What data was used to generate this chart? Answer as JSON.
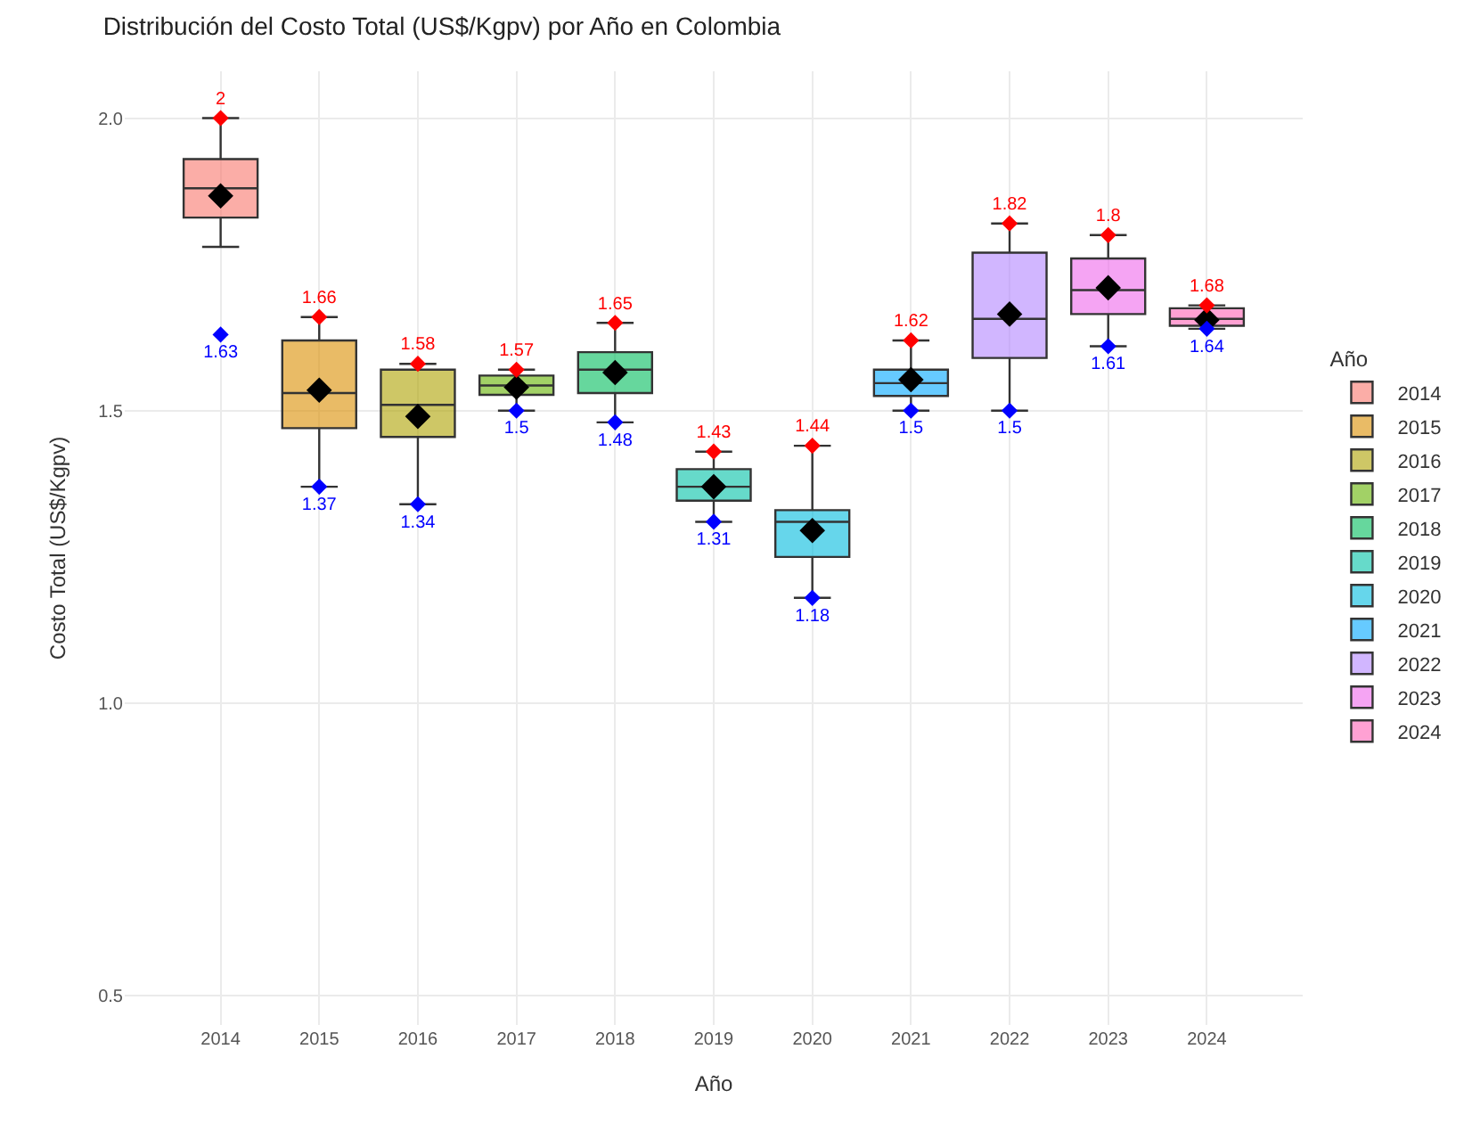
{
  "chart_data": {
    "type": "box",
    "title": "Distribución del Costo Total (US$/Kgpv) por Año en Colombia",
    "xlabel": "Año",
    "ylabel": "Costo Total (US$/Kgpv)",
    "legend_title": "Año",
    "legend": "right",
    "grid": true,
    "categories": [
      "2014",
      "2015",
      "2016",
      "2017",
      "2018",
      "2019",
      "2020",
      "2021",
      "2022",
      "2023",
      "2024"
    ],
    "series": [
      {
        "name": "2014",
        "color": "#f8766d",
        "boxes": [
          {
            "low": 1.78,
            "q1": 1.83,
            "median": 1.88,
            "q3": 1.93,
            "high": 2.0,
            "mean": 1.867
          },
          null,
          null,
          null,
          null,
          null,
          null,
          null,
          null,
          null,
          null
        ]
      },
      {
        "name": "2015",
        "color": "#db8e00",
        "boxes": [
          null,
          {
            "low": 1.37,
            "q1": 1.47,
            "median": 1.53,
            "q3": 1.62,
            "high": 1.66,
            "mean": 1.535
          },
          null,
          null,
          null,
          null,
          null,
          null,
          null,
          null,
          null
        ]
      },
      {
        "name": "2016",
        "color": "#aea200",
        "boxes": [
          null,
          null,
          {
            "low": 1.34,
            "q1": 1.455,
            "median": 1.51,
            "q3": 1.57,
            "high": 1.58,
            "mean": 1.49
          },
          null,
          null,
          null,
          null,
          null,
          null,
          null,
          null
        ]
      },
      {
        "name": "2017",
        "color": "#64b200",
        "boxes": [
          null,
          null,
          null,
          {
            "low": 1.5,
            "q1": 1.527,
            "median": 1.543,
            "q3": 1.56,
            "high": 1.57,
            "mean": 1.54
          },
          null,
          null,
          null,
          null,
          null,
          null,
          null
        ]
      },
      {
        "name": "2018",
        "color": "#00bd5c",
        "boxes": [
          null,
          null,
          null,
          null,
          {
            "low": 1.48,
            "q1": 1.53,
            "median": 1.57,
            "q3": 1.6,
            "high": 1.65,
            "mean": 1.565
          },
          null,
          null,
          null,
          null,
          null,
          null
        ]
      },
      {
        "name": "2019",
        "color": "#00c1a7",
        "boxes": [
          null,
          null,
          null,
          null,
          null,
          {
            "low": 1.31,
            "q1": 1.346,
            "median": 1.37,
            "q3": 1.4,
            "high": 1.43,
            "mean": 1.37
          },
          null,
          null,
          null,
          null,
          null
        ]
      },
      {
        "name": "2020",
        "color": "#00bade",
        "boxes": [
          null,
          null,
          null,
          null,
          null,
          null,
          {
            "low": 1.18,
            "q1": 1.25,
            "median": 1.31,
            "q3": 1.33,
            "high": 1.44,
            "mean": 1.295
          },
          null,
          null,
          null,
          null
        ]
      },
      {
        "name": "2021",
        "color": "#00a6ff",
        "boxes": [
          null,
          null,
          null,
          null,
          null,
          null,
          null,
          {
            "low": 1.5,
            "q1": 1.525,
            "median": 1.547,
            "q3": 1.57,
            "high": 1.62,
            "mean": 1.553
          },
          null,
          null,
          null
        ]
      },
      {
        "name": "2022",
        "color": "#b385ff",
        "boxes": [
          null,
          null,
          null,
          null,
          null,
          null,
          null,
          null,
          {
            "low": 1.5,
            "q1": 1.59,
            "median": 1.657,
            "q3": 1.77,
            "high": 1.82,
            "mean": 1.665
          },
          null,
          null
        ]
      },
      {
        "name": "2023",
        "color": "#ef67eb",
        "boxes": [
          null,
          null,
          null,
          null,
          null,
          null,
          null,
          null,
          null,
          {
            "low": 1.61,
            "q1": 1.665,
            "median": 1.706,
            "q3": 1.76,
            "high": 1.8,
            "mean": 1.71
          },
          null
        ]
      },
      {
        "name": "2024",
        "color": "#ff63b6",
        "boxes": [
          null,
          null,
          null,
          null,
          null,
          null,
          null,
          null,
          null,
          null,
          {
            "low": 1.64,
            "q1": 1.645,
            "median": 1.657,
            "q3": 1.675,
            "high": 1.68,
            "mean": 1.655
          }
        ]
      },
      {
        "type": "scatter",
        "color": "#ff0000",
        "marker": "diamond",
        "values": [
          2,
          1.66,
          1.58,
          1.57,
          1.65,
          1.43,
          1.44,
          1.62,
          1.82,
          1.8,
          1.68
        ]
      },
      {
        "type": "scatter",
        "color": "#0000ff",
        "marker": "diamond",
        "values": [
          1.63,
          1.37,
          1.34,
          1.5,
          1.48,
          1.31,
          1.18,
          1.5,
          1.5,
          1.61,
          1.64
        ]
      }
    ],
    "data_labels": true,
    "ylim": [
      0.45,
      2.08
    ],
    "yticks": [
      {
        "value": 0.5,
        "label": "0.5"
      },
      {
        "value": 1.0,
        "label": "1.0"
      },
      {
        "value": 1.5,
        "label": "1.5"
      },
      {
        "value": 2.0,
        "label": "2.0"
      }
    ]
  }
}
